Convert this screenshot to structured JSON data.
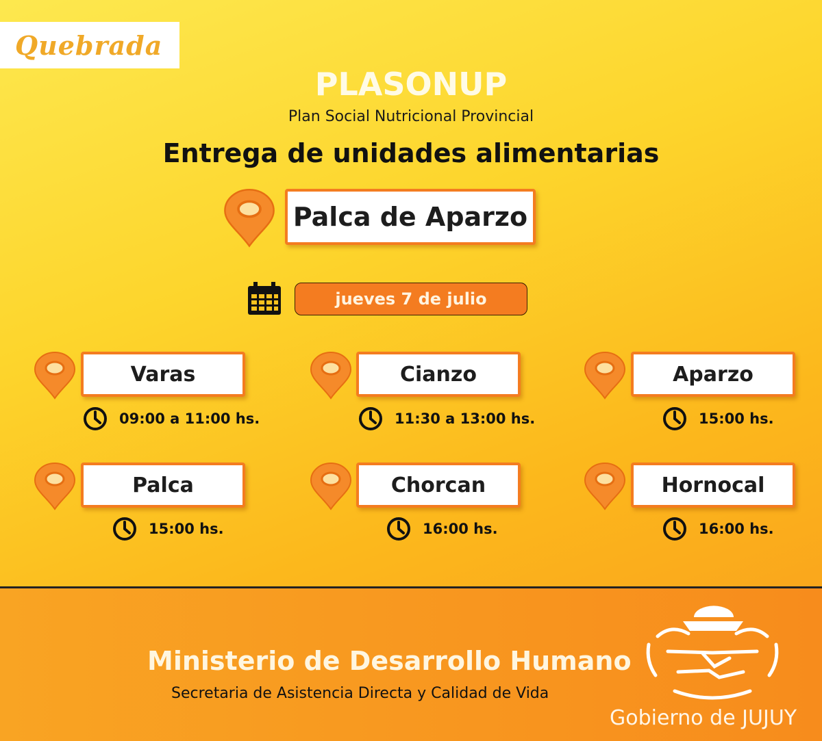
{
  "region_tag": "Quebrada",
  "title": "PLASONUP",
  "subtitle": "Plan Social Nutricional Provincial",
  "heading": "Entrega de unidades alimentarias",
  "main_location": "Palca de Aparzo",
  "date": "jueves 7 de julio",
  "stops": [
    {
      "name": "Varas",
      "time": "09:00 a 11:00 hs."
    },
    {
      "name": "Cianzo",
      "time": "11:30 a 13:00 hs."
    },
    {
      "name": "Aparzo",
      "time": "15:00 hs."
    },
    {
      "name": "Palca",
      "time": "15:00 hs."
    },
    {
      "name": "Chorcan",
      "time": "16:00 hs."
    },
    {
      "name": "Hornocal",
      "time": "16:00 hs."
    }
  ],
  "footer": {
    "ministry": "Ministerio de Desarrollo Humano",
    "secretariat": "Secretaria de Asistencia Directa y Calidad de Vida",
    "government": "Gobierno de JUJUY"
  },
  "colors": {
    "accent": "#f47c20",
    "pin": "#f58a2a",
    "background_top": "#fde84f",
    "background_bottom": "#f78c1c"
  }
}
